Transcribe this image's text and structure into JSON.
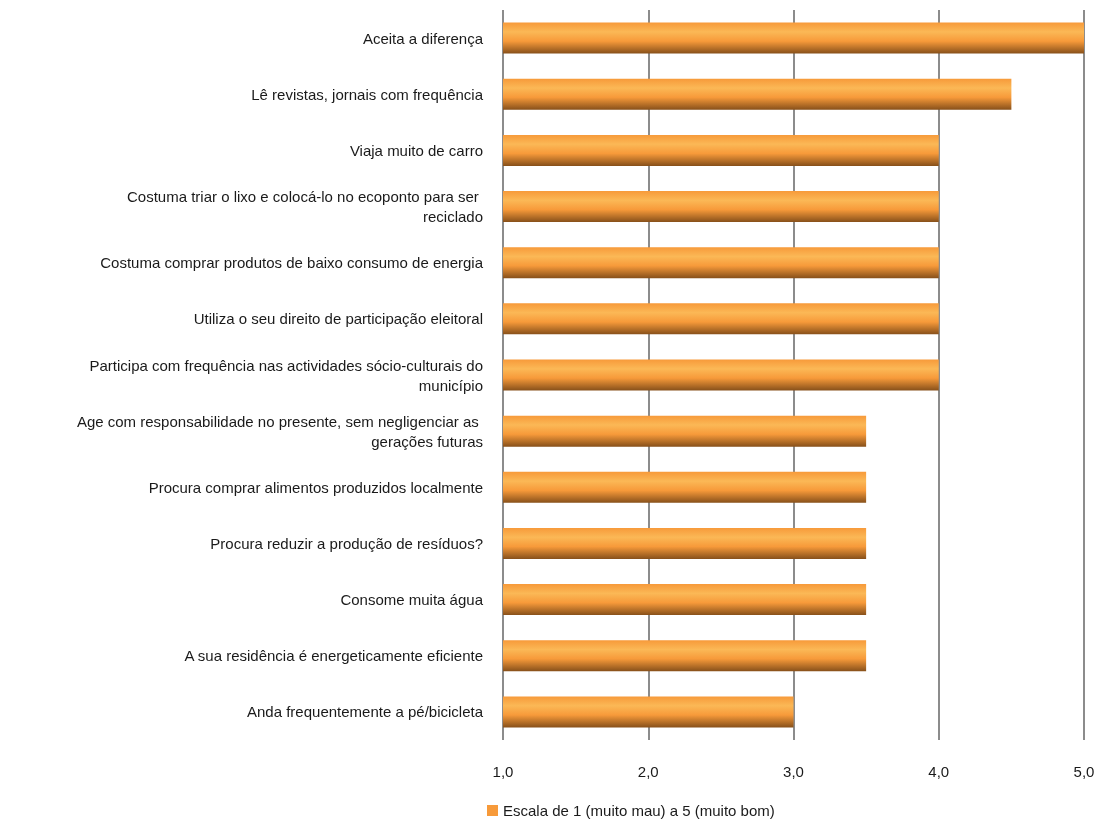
{
  "chart_data": {
    "type": "bar",
    "orientation": "horizontal",
    "categories": [
      "Aceita a diferença",
      "Lê revistas, jornais com frequência",
      "Viaja muito de carro",
      "Costuma triar o lixo e colocá-lo no ecoponto para ser reciclado",
      "Costuma comprar produtos de baixo consumo de energia",
      "Utiliza o seu direito de participação eleitoral",
      "Participa com frequência nas actividades sócio-culturais do município",
      "Age com responsabilidade no presente, sem negligenciar as gerações futuras",
      "Procura comprar alimentos produzidos localmente",
      "Procura reduzir a produção de resíduos?",
      "Consome muita água",
      "A sua residência é energeticamente eficiente",
      "Anda frequentemente a pé/bicicleta"
    ],
    "series": [
      {
        "name": "Escala de 1 (muito mau) a 5 (muito bom)",
        "color": "#f79a3a",
        "values": [
          5.0,
          4.5,
          4.0,
          4.0,
          4.0,
          4.0,
          4.0,
          3.5,
          3.5,
          3.5,
          3.5,
          3.5,
          3.0
        ]
      }
    ],
    "xlim": [
      1,
      5
    ],
    "xticks": [
      {
        "value": 1,
        "label": "1,0"
      },
      {
        "value": 2,
        "label": "2,0"
      },
      {
        "value": 3,
        "label": "3,0"
      },
      {
        "value": 4,
        "label": "4,0"
      },
      {
        "value": 5,
        "label": "5,0"
      }
    ],
    "grid": "x",
    "legend": "bottom"
  }
}
